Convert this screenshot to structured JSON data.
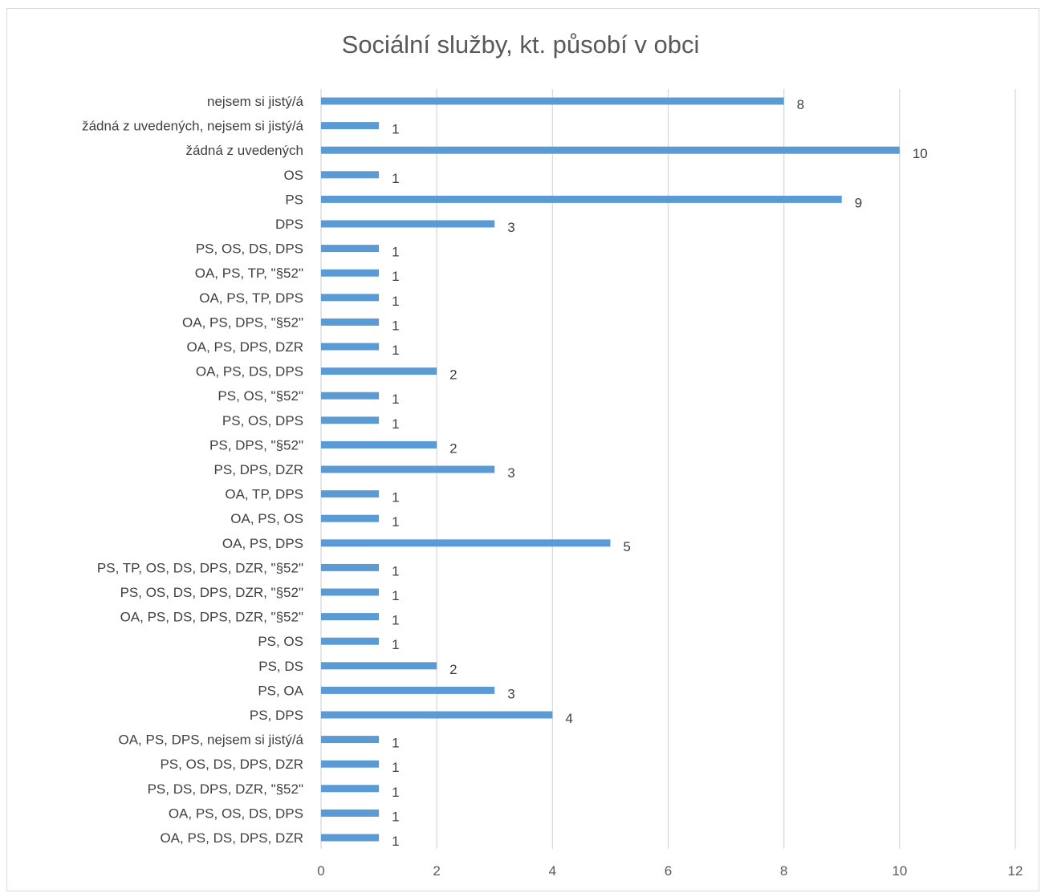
{
  "chart_data": {
    "type": "bar",
    "orientation": "horizontal",
    "title": "Sociální služby, kt. působí v obci",
    "categories": [
      "nejsem si jistý/á",
      "žádná z uvedených, nejsem si jistý/á",
      "žádná z uvedených",
      "OS",
      "PS",
      "DPS",
      "PS, OS, DS, DPS",
      "OA, PS, TP, \"§52\"",
      "OA, PS, TP, DPS",
      "OA, PS, DPS, \"§52\"",
      "OA, PS, DPS, DZR",
      "OA, PS, DS, DPS",
      "PS, OS, \"§52\"",
      "PS, OS, DPS",
      "PS, DPS, \"§52\"",
      "PS, DPS, DZR",
      "OA, TP, DPS",
      "OA, PS, OS",
      "OA, PS, DPS",
      "PS, TP, OS, DS, DPS, DZR, \"§52\"",
      "PS, OS, DS, DPS, DZR, \"§52\"",
      "OA, PS, DS, DPS, DZR, \"§52\"",
      "PS, OS",
      "PS, DS",
      "PS, OA",
      "PS, DPS",
      "OA, PS, DPS, nejsem si jistý/á",
      "PS, OS, DS, DPS, DZR",
      "PS, DS, DPS, DZR, \"§52\"",
      "OA, PS, OS, DS, DPS",
      "OA, PS, DS, DPS, DZR"
    ],
    "values": [
      8,
      1,
      10,
      1,
      9,
      3,
      1,
      1,
      1,
      1,
      1,
      2,
      1,
      1,
      2,
      3,
      1,
      1,
      5,
      1,
      1,
      1,
      1,
      2,
      3,
      4,
      1,
      1,
      1,
      1,
      1
    ],
    "xlim": [
      0,
      12
    ],
    "xticks": [
      0,
      2,
      4,
      6,
      8,
      10,
      12
    ],
    "grid": "vertical",
    "legend": "none",
    "data_labels": true,
    "colors": {
      "bar": "#5b9bd5",
      "grid": "#d9d9d9",
      "text": "#404040",
      "title": "#595959"
    }
  }
}
